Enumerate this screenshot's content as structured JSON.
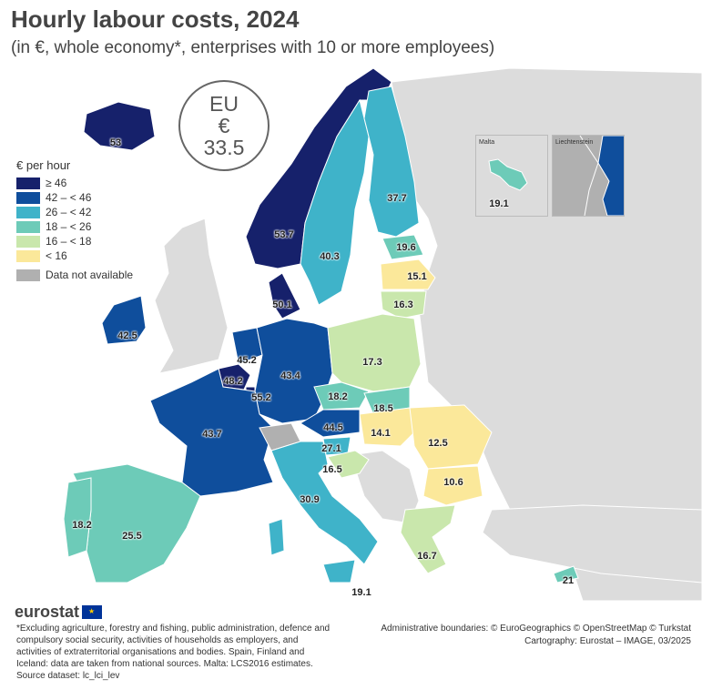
{
  "title": "Hourly labour costs, 2024",
  "subtitle": "(in €, whole economy*, enterprises with 10 or more employees)",
  "eu_badge": {
    "line1": "EU",
    "line2": "€",
    "value": "33.5"
  },
  "legend": {
    "title": "€ per hour",
    "classes": [
      {
        "label": "≥ 46",
        "color": "#16216b"
      },
      {
        "label": "42 – < 46",
        "color": "#0f4e9c"
      },
      {
        "label": "26 – < 42",
        "color": "#3fb3c9"
      },
      {
        "label": "18 – < 26",
        "color": "#6dcbb8"
      },
      {
        "label": "16 – < 18",
        "color": "#c9e7ac"
      },
      {
        "label": "< 16",
        "color": "#fbe89a"
      }
    ],
    "na_label": "Data not available",
    "na_color": "#b0b0b0"
  },
  "insets": {
    "malta_label": "Malta",
    "malta_value": "19.1",
    "liechtenstein_label": "Liechtenstein"
  },
  "map_values": {
    "iceland": "53",
    "norway": "53.7",
    "sweden": "40.3",
    "finland": "37.7",
    "estonia": "19.6",
    "latvia": "15.1",
    "lithuania": "16.3",
    "denmark": "50.1",
    "ireland": "42.5",
    "netherlands": "45.2",
    "belgium": "48.2",
    "luxembourg": "55.2",
    "germany": "43.4",
    "poland": "17.3",
    "czechia": "18.2",
    "slovakia": "18.5",
    "france": "43.7",
    "austria": "44.5",
    "hungary": "14.1",
    "romania": "12.5",
    "slovenia": "27.1",
    "croatia": "16.5",
    "bulgaria": "10.6",
    "italy": "30.9",
    "portugal": "18.2",
    "spain": "25.5",
    "greece": "16.7",
    "cyprus": "21",
    "sicily_malta": "19.1"
  },
  "logo": "eurostat",
  "footnote": "*Excluding agriculture, forestry and fishing, public administration, defence and compulsory social security, activities of households as employers, and activities of extraterritorial organisations and bodies. Spain, Finland and Iceland: data are taken from national sources. Malta: LCS2016 estimates.",
  "source": "Source dataset: lc_lci_lev",
  "credits_line1": "Administrative boundaries: © EuroGeographics © OpenStreetMap © Turkstat",
  "credits_line2": "Cartography: Eurostat – IMAGE, 03/2025"
}
